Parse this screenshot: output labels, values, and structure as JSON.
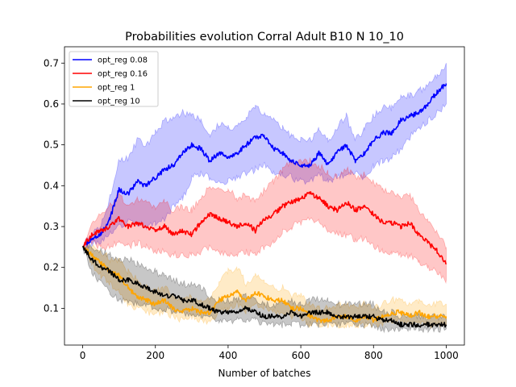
{
  "chart_data": {
    "type": "line",
    "title": "Probabilities evolution Corral Adult B10 N 10_10",
    "xlabel": "Number of batches",
    "ylabel": "",
    "xlim": [
      -50,
      1050
    ],
    "ylim": [
      0.01,
      0.74
    ],
    "xticks": [
      0,
      200,
      400,
      600,
      800,
      1000
    ],
    "yticks": [
      0.1,
      0.2,
      0.3,
      0.4,
      0.5,
      0.6,
      0.7
    ],
    "legend_position": "top-left",
    "grid": false,
    "series": [
      {
        "name": "opt_reg 0.08",
        "color": "#0000ff",
        "band_color": "#0000ff",
        "x": [
          0,
          25,
          50,
          75,
          100,
          125,
          150,
          175,
          200,
          225,
          250,
          275,
          300,
          325,
          350,
          375,
          400,
          425,
          450,
          475,
          500,
          525,
          550,
          575,
          600,
          625,
          650,
          675,
          700,
          725,
          750,
          775,
          800,
          825,
          850,
          875,
          900,
          925,
          950,
          975,
          1000
        ],
        "mean": [
          0.25,
          0.27,
          0.28,
          0.32,
          0.39,
          0.38,
          0.41,
          0.4,
          0.42,
          0.44,
          0.45,
          0.48,
          0.5,
          0.49,
          0.46,
          0.48,
          0.47,
          0.48,
          0.5,
          0.52,
          0.52,
          0.49,
          0.48,
          0.46,
          0.45,
          0.45,
          0.48,
          0.45,
          0.48,
          0.5,
          0.46,
          0.48,
          0.51,
          0.53,
          0.53,
          0.56,
          0.57,
          0.58,
          0.6,
          0.63,
          0.65
        ],
        "lower": [
          0.25,
          0.26,
          0.26,
          0.28,
          0.3,
          0.31,
          0.31,
          0.3,
          0.31,
          0.32,
          0.35,
          0.37,
          0.42,
          0.43,
          0.42,
          0.41,
          0.41,
          0.42,
          0.43,
          0.44,
          0.45,
          0.43,
          0.43,
          0.42,
          0.41,
          0.41,
          0.43,
          0.41,
          0.42,
          0.43,
          0.43,
          0.42,
          0.45,
          0.46,
          0.47,
          0.49,
          0.52,
          0.54,
          0.56,
          0.58,
          0.6
        ],
        "upper": [
          0.25,
          0.28,
          0.3,
          0.37,
          0.46,
          0.47,
          0.51,
          0.5,
          0.53,
          0.56,
          0.56,
          0.58,
          0.57,
          0.56,
          0.52,
          0.55,
          0.54,
          0.54,
          0.57,
          0.59,
          0.58,
          0.56,
          0.54,
          0.52,
          0.51,
          0.51,
          0.54,
          0.51,
          0.54,
          0.57,
          0.51,
          0.54,
          0.57,
          0.59,
          0.59,
          0.62,
          0.62,
          0.63,
          0.65,
          0.67,
          0.7
        ]
      },
      {
        "name": "opt_reg 0.16",
        "color": "#ff0000",
        "band_color": "#ff0000",
        "x": [
          0,
          25,
          50,
          75,
          100,
          125,
          150,
          175,
          200,
          225,
          250,
          275,
          300,
          325,
          350,
          375,
          400,
          425,
          450,
          475,
          500,
          525,
          550,
          575,
          600,
          625,
          650,
          675,
          700,
          725,
          750,
          775,
          800,
          825,
          850,
          875,
          900,
          925,
          950,
          975,
          1000
        ],
        "mean": [
          0.25,
          0.28,
          0.29,
          0.3,
          0.32,
          0.3,
          0.31,
          0.3,
          0.29,
          0.3,
          0.28,
          0.29,
          0.28,
          0.31,
          0.33,
          0.32,
          0.31,
          0.3,
          0.31,
          0.29,
          0.32,
          0.33,
          0.35,
          0.36,
          0.37,
          0.38,
          0.37,
          0.35,
          0.34,
          0.36,
          0.34,
          0.35,
          0.33,
          0.31,
          0.31,
          0.3,
          0.31,
          0.28,
          0.26,
          0.24,
          0.21
        ],
        "lower": [
          0.25,
          0.26,
          0.25,
          0.25,
          0.26,
          0.25,
          0.26,
          0.25,
          0.24,
          0.24,
          0.23,
          0.23,
          0.23,
          0.24,
          0.25,
          0.24,
          0.23,
          0.23,
          0.24,
          0.23,
          0.25,
          0.26,
          0.29,
          0.3,
          0.31,
          0.32,
          0.31,
          0.29,
          0.28,
          0.28,
          0.27,
          0.27,
          0.25,
          0.24,
          0.24,
          0.23,
          0.23,
          0.21,
          0.2,
          0.19,
          0.17
        ],
        "upper": [
          0.25,
          0.3,
          0.33,
          0.35,
          0.38,
          0.35,
          0.37,
          0.36,
          0.35,
          0.36,
          0.34,
          0.35,
          0.34,
          0.37,
          0.4,
          0.39,
          0.39,
          0.37,
          0.38,
          0.36,
          0.39,
          0.41,
          0.44,
          0.46,
          0.46,
          0.46,
          0.45,
          0.43,
          0.42,
          0.44,
          0.42,
          0.43,
          0.41,
          0.39,
          0.38,
          0.37,
          0.38,
          0.34,
          0.31,
          0.29,
          0.25
        ]
      },
      {
        "name": "opt_reg 1",
        "color": "#ffa500",
        "band_color": "#ffa500",
        "x": [
          0,
          25,
          50,
          75,
          100,
          125,
          150,
          175,
          200,
          225,
          250,
          275,
          300,
          325,
          350,
          375,
          400,
          425,
          450,
          475,
          500,
          525,
          550,
          575,
          600,
          625,
          650,
          675,
          700,
          725,
          750,
          775,
          800,
          825,
          850,
          875,
          900,
          925,
          950,
          975,
          1000
        ],
        "mean": [
          0.25,
          0.23,
          0.21,
          0.19,
          0.18,
          0.15,
          0.13,
          0.12,
          0.11,
          0.12,
          0.1,
          0.09,
          0.1,
          0.09,
          0.09,
          0.12,
          0.13,
          0.14,
          0.12,
          0.14,
          0.13,
          0.12,
          0.12,
          0.1,
          0.1,
          0.08,
          0.07,
          0.07,
          0.08,
          0.08,
          0.07,
          0.08,
          0.07,
          0.08,
          0.09,
          0.09,
          0.08,
          0.09,
          0.08,
          0.08,
          0.08
        ],
        "lower": [
          0.25,
          0.21,
          0.18,
          0.16,
          0.14,
          0.11,
          0.1,
          0.09,
          0.09,
          0.09,
          0.08,
          0.07,
          0.08,
          0.07,
          0.07,
          0.09,
          0.1,
          0.11,
          0.09,
          0.11,
          0.1,
          0.09,
          0.09,
          0.08,
          0.08,
          0.06,
          0.06,
          0.06,
          0.06,
          0.06,
          0.06,
          0.06,
          0.06,
          0.06,
          0.07,
          0.07,
          0.06,
          0.07,
          0.06,
          0.06,
          0.06
        ],
        "upper": [
          0.25,
          0.25,
          0.24,
          0.22,
          0.22,
          0.19,
          0.17,
          0.15,
          0.14,
          0.15,
          0.13,
          0.12,
          0.13,
          0.12,
          0.12,
          0.16,
          0.19,
          0.2,
          0.16,
          0.18,
          0.17,
          0.15,
          0.15,
          0.13,
          0.13,
          0.11,
          0.1,
          0.1,
          0.11,
          0.11,
          0.1,
          0.11,
          0.1,
          0.11,
          0.12,
          0.12,
          0.11,
          0.12,
          0.11,
          0.11,
          0.11
        ]
      },
      {
        "name": "opt_reg 10",
        "color": "#000000",
        "band_color": "#000000",
        "x": [
          0,
          25,
          50,
          75,
          100,
          125,
          150,
          175,
          200,
          225,
          250,
          275,
          300,
          325,
          350,
          375,
          400,
          425,
          450,
          475,
          500,
          525,
          550,
          575,
          600,
          625,
          650,
          675,
          700,
          725,
          750,
          775,
          800,
          825,
          850,
          875,
          900,
          925,
          950,
          975,
          1000
        ],
        "mean": [
          0.25,
          0.22,
          0.2,
          0.19,
          0.17,
          0.17,
          0.16,
          0.15,
          0.14,
          0.13,
          0.13,
          0.12,
          0.12,
          0.11,
          0.1,
          0.09,
          0.09,
          0.09,
          0.1,
          0.09,
          0.08,
          0.08,
          0.08,
          0.09,
          0.08,
          0.09,
          0.09,
          0.09,
          0.08,
          0.08,
          0.08,
          0.08,
          0.08,
          0.07,
          0.07,
          0.06,
          0.06,
          0.06,
          0.06,
          0.06,
          0.06
        ],
        "lower": [
          0.25,
          0.19,
          0.16,
          0.14,
          0.12,
          0.12,
          0.11,
          0.11,
          0.1,
          0.1,
          0.09,
          0.09,
          0.08,
          0.08,
          0.08,
          0.07,
          0.07,
          0.07,
          0.07,
          0.07,
          0.06,
          0.06,
          0.06,
          0.06,
          0.06,
          0.06,
          0.06,
          0.06,
          0.06,
          0.06,
          0.06,
          0.06,
          0.06,
          0.05,
          0.05,
          0.05,
          0.05,
          0.05,
          0.05,
          0.05,
          0.05
        ],
        "upper": [
          0.25,
          0.25,
          0.24,
          0.23,
          0.22,
          0.22,
          0.21,
          0.2,
          0.19,
          0.18,
          0.17,
          0.16,
          0.16,
          0.15,
          0.13,
          0.12,
          0.12,
          0.12,
          0.13,
          0.12,
          0.11,
          0.11,
          0.11,
          0.12,
          0.11,
          0.12,
          0.12,
          0.12,
          0.11,
          0.11,
          0.11,
          0.11,
          0.11,
          0.09,
          0.09,
          0.08,
          0.08,
          0.08,
          0.08,
          0.08,
          0.08
        ]
      }
    ]
  }
}
